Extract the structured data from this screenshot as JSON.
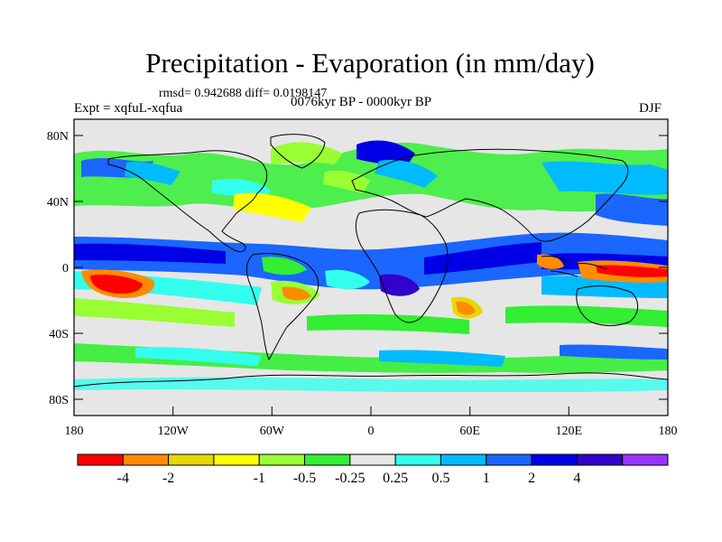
{
  "title": "Precipitation - Evaporation (in mm/day)",
  "stats_line": "rmsd= 0.942688 diff= 0.0198147",
  "experiment": "Expt = xqfuL-xqfua",
  "period": "0076kyr BP - 0000kyr BP",
  "season": "DJF",
  "axes": {
    "y_ticks": [
      "80N",
      "40N",
      "0",
      "40S",
      "80S"
    ],
    "x_ticks": [
      "180",
      "120W",
      "60W",
      "0",
      "60E",
      "120E",
      "180"
    ]
  },
  "colorbar": {
    "colors": [
      "#ff0000",
      "#ff8c00",
      "#e6d800",
      "#ffff00",
      "#99ff33",
      "#33ee33",
      "#e6e6e6",
      "#33ffee",
      "#00bbff",
      "#1a66ff",
      "#0000e6",
      "#3300cc",
      "#9933ff"
    ],
    "labels": [
      "-4",
      "-2",
      "-1",
      "-0.5",
      "-0.25",
      "0.25",
      "0.5",
      "1",
      "2",
      "4"
    ]
  }
}
